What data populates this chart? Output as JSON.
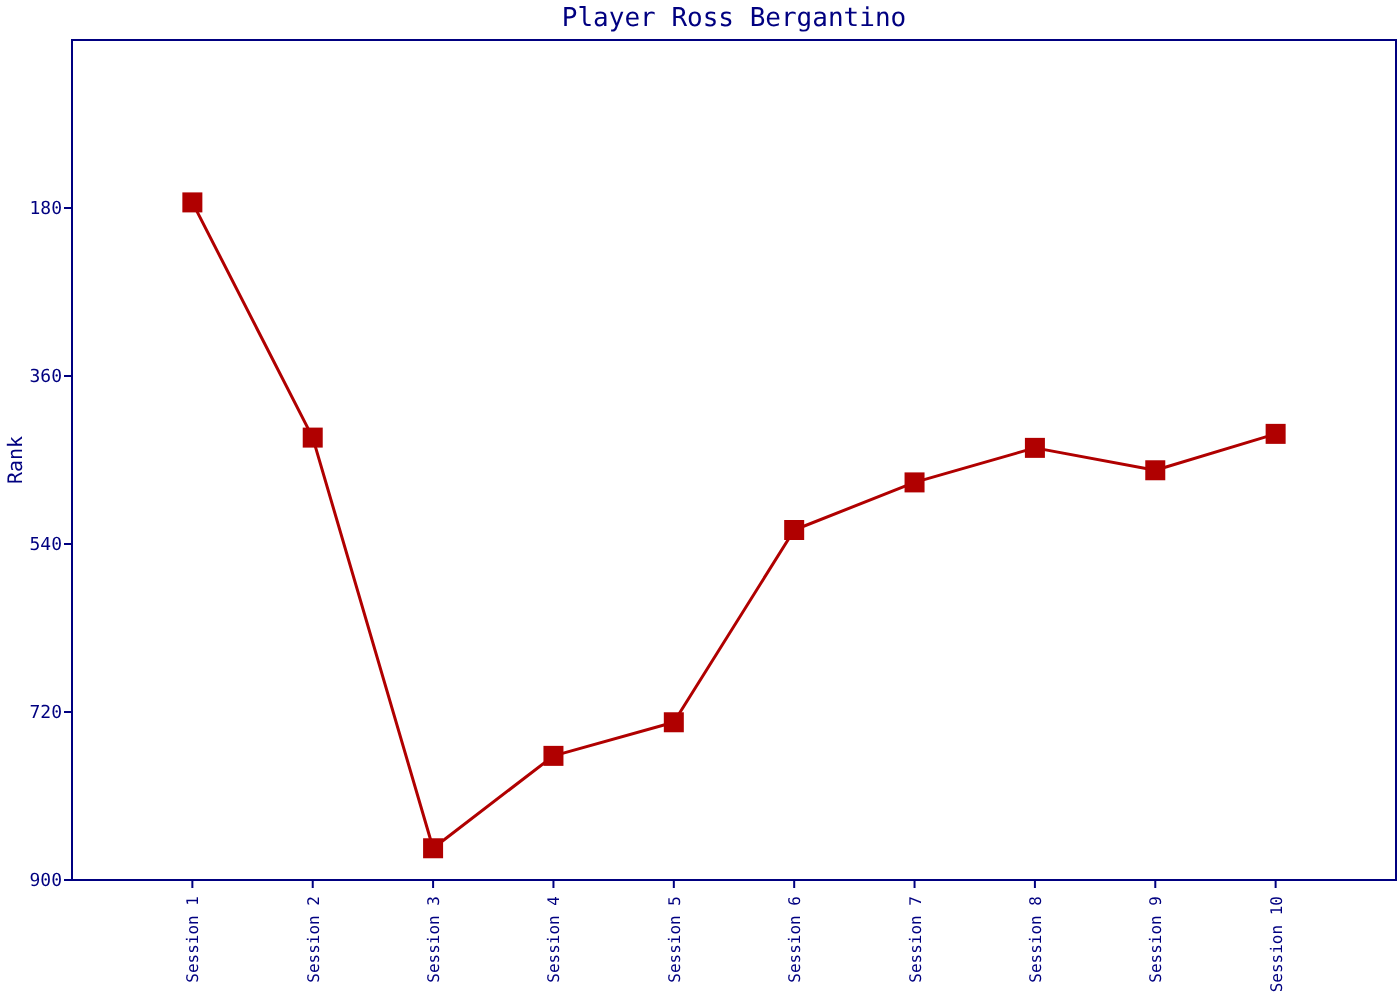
{
  "chart_data": {
    "type": "line",
    "title": "Player Ross Bergantino",
    "ylabel": "Rank",
    "categories": [
      "Session 1",
      "Session 2",
      "Session 3",
      "Session 4",
      "Session 5",
      "Session 6",
      "Session 7",
      "Session 8",
      "Session 9",
      "Session 10"
    ],
    "series": [
      {
        "color": "#b00000",
        "values": [
          174,
          426,
          866,
          767,
          731,
          525,
          474,
          437,
          461,
          422
        ]
      }
    ],
    "ylim": [
      900,
      0
    ],
    "yticks": [
      180,
      360,
      540,
      720,
      900
    ],
    "grid": false,
    "marker": "square",
    "line_style": "solid"
  }
}
